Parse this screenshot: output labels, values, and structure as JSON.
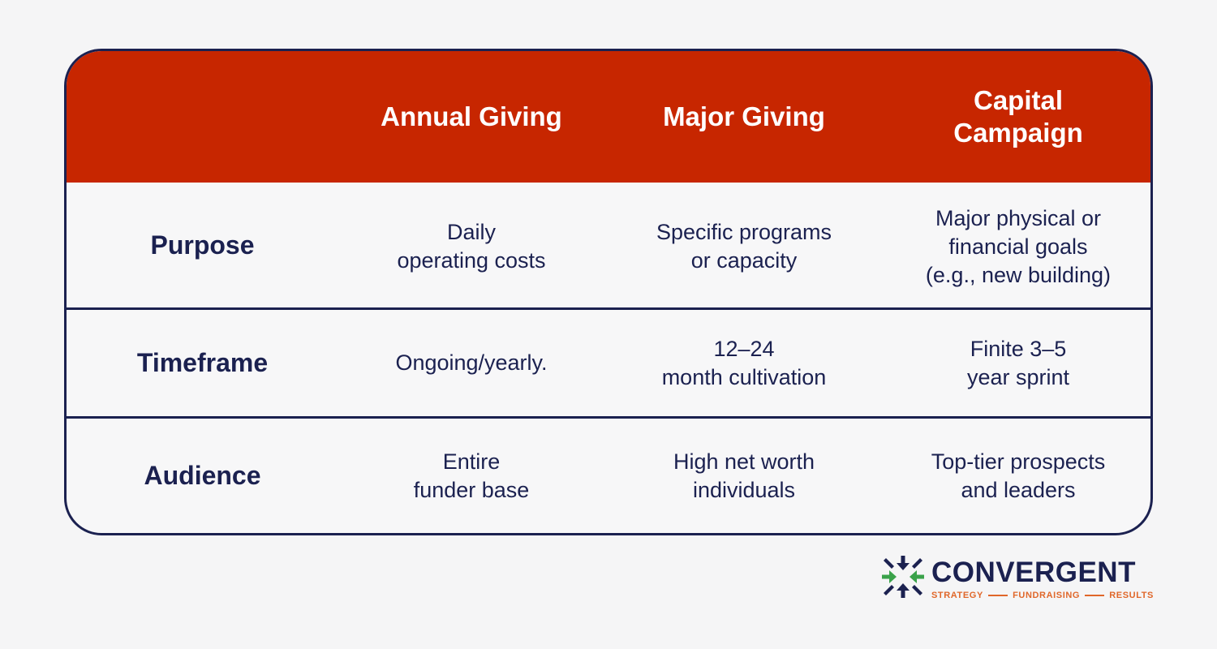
{
  "table": {
    "headers": [
      "",
      "Annual Giving",
      "Major Giving",
      "Capital\nCampaign"
    ],
    "rows": [
      {
        "label": "Purpose",
        "cells": [
          "Daily\noperating costs",
          "Specific programs\nor capacity",
          "Major physical or\nfinancial goals\n(e.g., new building)"
        ]
      },
      {
        "label": "Timeframe",
        "cells": [
          "Ongoing/yearly.",
          "12–24\nmonth cultivation",
          "Finite 3–5\nyear sprint"
        ]
      },
      {
        "label": "Audience",
        "cells": [
          "Entire\nfunder base",
          "High net worth\nindividuals",
          "Top-tier prospects\nand leaders"
        ]
      }
    ]
  },
  "logo": {
    "name": "CONVERGENT",
    "tagline": [
      "STRATEGY",
      "FUNDRAISING",
      "RESULTS"
    ],
    "icon": "converging-arrows-icon"
  },
  "colors": {
    "header_bg": "#c72600",
    "navy": "#1b2150",
    "green": "#3aa24a",
    "orange": "#e0672a"
  }
}
